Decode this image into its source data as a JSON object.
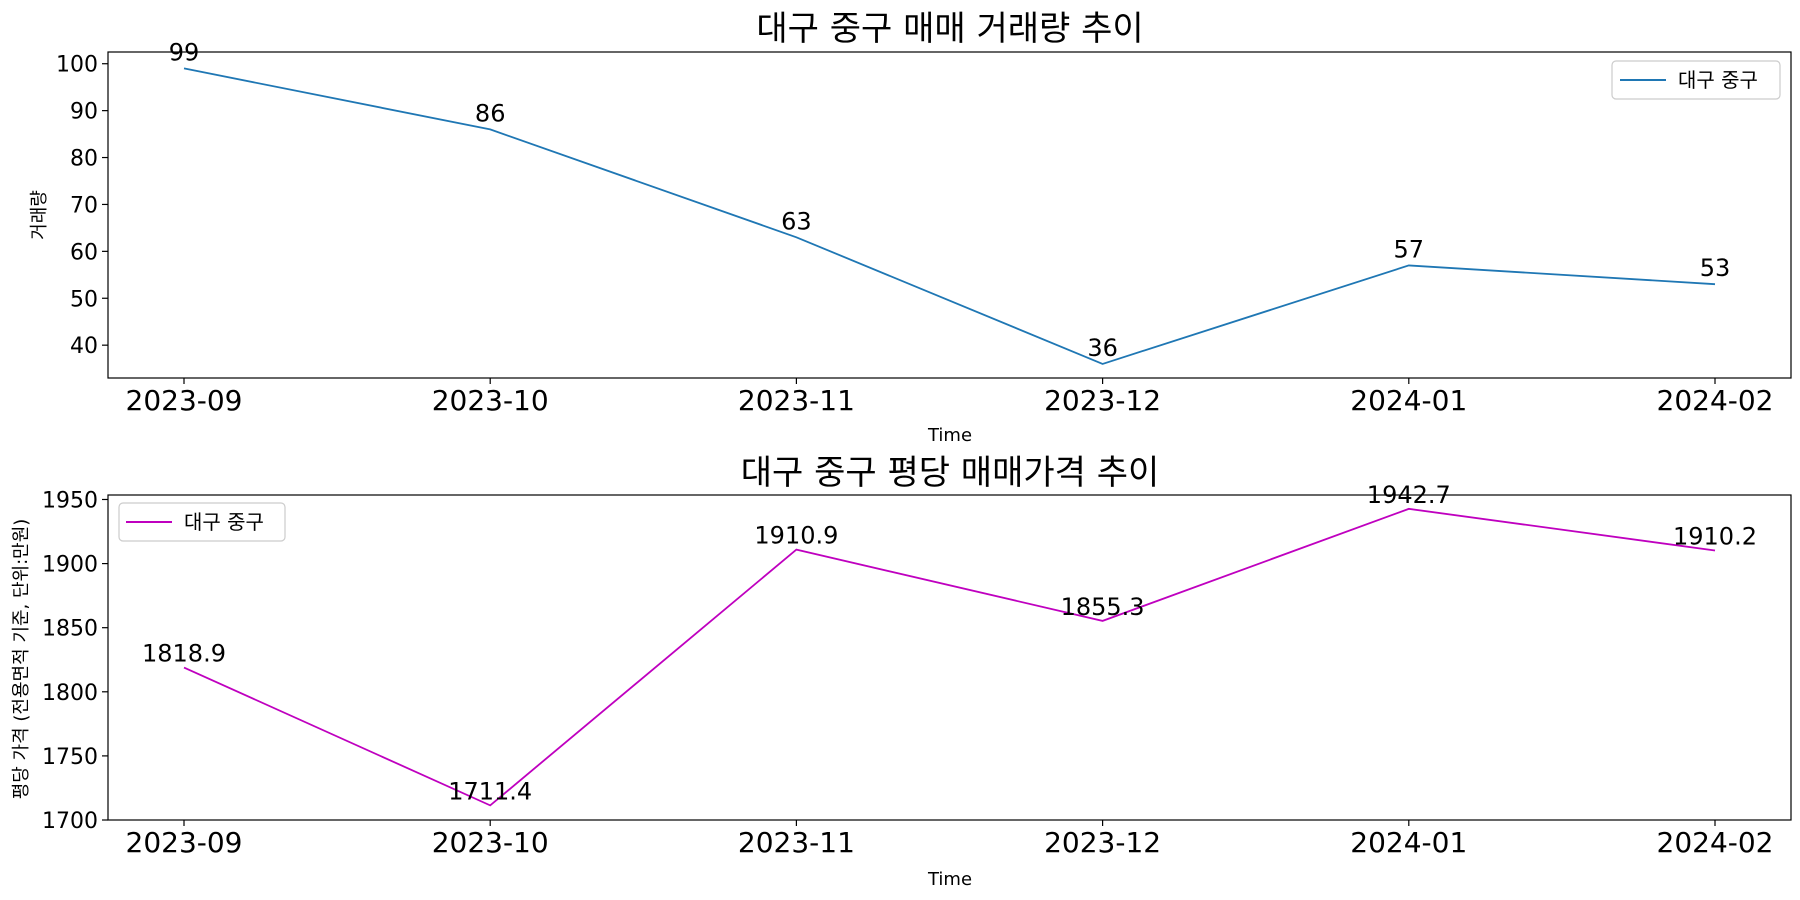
{
  "chart_data": [
    {
      "type": "line",
      "title": "대구 중구 매매 거래량 추이",
      "xlabel": "Time",
      "ylabel": "거래량",
      "categories": [
        "2023-09",
        "2023-10",
        "2023-11",
        "2023-12",
        "2024-01",
        "2024-02"
      ],
      "series": [
        {
          "name": "대구 중구",
          "values": [
            99,
            86,
            63,
            36,
            57,
            53
          ],
          "color": "#1f77b4"
        }
      ],
      "data_labels": [
        "99",
        "86",
        "63",
        "36",
        "57",
        "53"
      ],
      "ylim": [
        33,
        102.5
      ],
      "yticks": [
        40,
        50,
        60,
        70,
        80,
        90,
        100
      ],
      "ytick_labels": [
        "40",
        "50",
        "60",
        "70",
        "80",
        "90",
        "100"
      ],
      "legend_position": "top-right",
      "grid": false
    },
    {
      "type": "line",
      "title": "대구 중구 평당 매매가격 추이",
      "xlabel": "Time",
      "ylabel": "평당 가격 (전용면적 기준, 단위:만원)",
      "categories": [
        "2023-09",
        "2023-10",
        "2023-11",
        "2023-12",
        "2024-01",
        "2024-02"
      ],
      "series": [
        {
          "name": "대구 중구",
          "values": [
            1818.9,
            1711.4,
            1910.9,
            1855.3,
            1942.7,
            1910.2
          ],
          "color": "#bf00bf"
        }
      ],
      "data_labels": [
        "1818.9",
        "1711.4",
        "1910.9",
        "1855.3",
        "1942.7",
        "1910.2"
      ],
      "ylim": [
        1700,
        1953.5
      ],
      "yticks": [
        1700,
        1750,
        1800,
        1850,
        1900,
        1950
      ],
      "ytick_labels": [
        "1700",
        "1750",
        "1800",
        "1850",
        "1900",
        "1950"
      ],
      "legend_position": "top-left",
      "grid": false
    }
  ]
}
